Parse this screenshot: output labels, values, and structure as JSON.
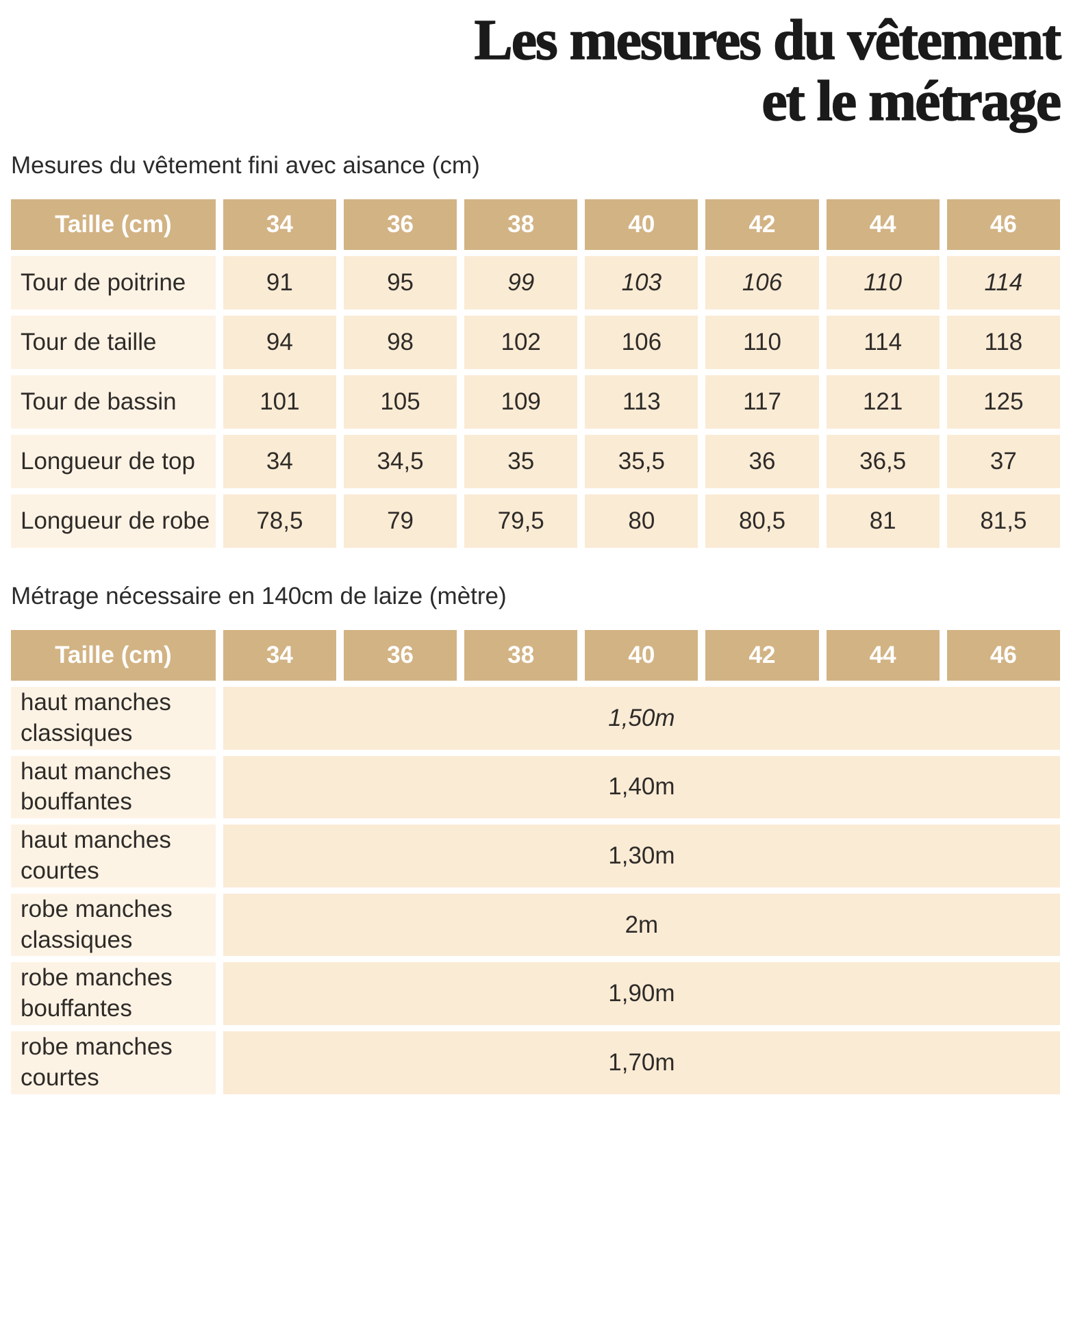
{
  "page": {
    "title_line1": "Les mesures du vêtement",
    "title_line2": "et le métrage"
  },
  "colors": {
    "title": "#1a1a1a",
    "caption": "#2b2b2b",
    "text": "#2e2b28",
    "header_bg": "#d2b384",
    "header_text": "#ffffff",
    "label_cell_bg": "#fdf3e5",
    "value_cell_bg": "#faebd5"
  },
  "table1": {
    "caption": "Mesures du vêtement fini avec aisance (cm)",
    "header": [
      "Taille (cm)",
      "34",
      "36",
      "38",
      "40",
      "42",
      "44",
      "46"
    ],
    "rows": [
      {
        "label": "Tour de poitrine",
        "values": [
          "91",
          "95",
          "99",
          "103",
          "106",
          "110",
          "114"
        ],
        "italics": [
          false,
          false,
          true,
          true,
          true,
          true,
          true
        ]
      },
      {
        "label": "Tour de taille",
        "values": [
          "94",
          "98",
          "102",
          "106",
          "110",
          "114",
          "118"
        ]
      },
      {
        "label": "Tour de bassin",
        "values": [
          "101",
          "105",
          "109",
          "113",
          "117",
          "121",
          "125"
        ]
      },
      {
        "label": "Longueur de top",
        "values": [
          "34",
          "34,5",
          "35",
          "35,5",
          "36",
          "36,5",
          "37"
        ]
      },
      {
        "label": "Longueur de robe",
        "values": [
          "78,5",
          "79",
          "79,5",
          "80",
          "80,5",
          "81",
          "81,5"
        ]
      }
    ]
  },
  "table2": {
    "caption": "Métrage nécessaire en 140cm de laize (mètre)",
    "header": [
      "Taille (cm)",
      "34",
      "36",
      "38",
      "40",
      "42",
      "44",
      "46"
    ],
    "rows": [
      {
        "label": "haut manches classiques",
        "value": "1,50m",
        "italic": true
      },
      {
        "label": "haut manches bouffantes",
        "value": "1,40m",
        "italic": false
      },
      {
        "label": "haut manches courtes",
        "value": "1,30m",
        "italic": false
      },
      {
        "label": "robe manches classiques",
        "value": "2m",
        "italic": false
      },
      {
        "label": "robe manches bouffantes",
        "value": "1,90m",
        "italic": false
      },
      {
        "label": "robe manches courtes",
        "value": "1,70m",
        "italic": false
      }
    ]
  }
}
